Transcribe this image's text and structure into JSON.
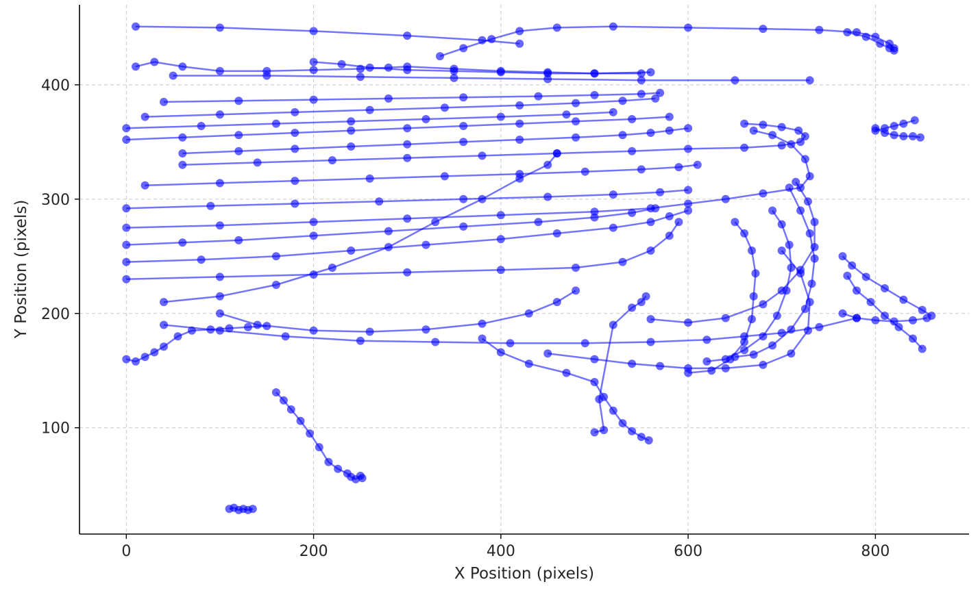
{
  "chart_data": {
    "type": "line",
    "xlabel": "X Position (pixels)",
    "ylabel": "Y Position (pixels)",
    "xlim": [
      -50,
      900
    ],
    "ylim": [
      470,
      7
    ],
    "y_inverted": true,
    "grid": true,
    "x_ticks": [
      0,
      200,
      400,
      600,
      800
    ],
    "y_ticks": [
      100,
      200,
      300,
      400
    ],
    "color": "#0000ff",
    "marker": "circle",
    "series": [
      {
        "x": [
          110,
          115,
          120,
          125,
          130,
          135
        ],
        "y": [
          29,
          30,
          28,
          29,
          28,
          29
        ]
      },
      {
        "x": [
          160,
          168,
          176,
          186,
          196,
          206,
          216,
          226,
          236,
          240,
          245,
          250,
          252
        ],
        "y": [
          131,
          124,
          116,
          106,
          95,
          83,
          70,
          64,
          60,
          57,
          55,
          58,
          56
        ]
      },
      {
        "x": [
          0,
          10,
          20,
          30,
          40,
          55,
          70,
          90,
          110,
          130,
          150
        ],
        "y": [
          160,
          158,
          162,
          166,
          171,
          180,
          185,
          186,
          187,
          188,
          189
        ]
      },
      {
        "x": [
          40,
          100,
          170,
          250,
          330,
          410,
          490,
          560,
          620,
          660,
          700,
          740,
          780
        ],
        "y": [
          190,
          185,
          180,
          176,
          175,
          174,
          174,
          175,
          177,
          180,
          183,
          188,
          196
        ]
      },
      {
        "x": [
          100,
          140,
          200,
          260,
          320,
          380,
          430,
          460,
          480
        ],
        "y": [
          200,
          190,
          185,
          184,
          186,
          191,
          200,
          210,
          220
        ]
      },
      {
        "x": [
          380,
          400,
          430,
          470,
          500,
          510,
          520,
          530,
          540,
          550,
          558
        ],
        "y": [
          178,
          166,
          156,
          148,
          140,
          127,
          115,
          104,
          97,
          92,
          89
        ]
      },
      {
        "x": [
          600,
          625,
          645,
          660,
          668,
          670,
          672,
          668,
          660,
          650
        ],
        "y": [
          148,
          150,
          160,
          175,
          195,
          215,
          235,
          255,
          270,
          280
        ]
      },
      {
        "x": [
          620,
          640,
          660,
          680,
          695,
          705,
          710,
          708,
          700,
          690
        ],
        "y": [
          158,
          160,
          168,
          180,
          198,
          220,
          240,
          260,
          278,
          290
        ]
      },
      {
        "x": [
          650,
          670,
          690,
          710,
          725,
          732,
          735,
          730,
          720,
          708
        ],
        "y": [
          162,
          164,
          172,
          186,
          204,
          226,
          248,
          270,
          290,
          310
        ]
      },
      {
        "x": [
          450,
          500,
          540,
          570,
          600,
          640,
          680,
          710,
          728,
          730,
          720,
          700
        ],
        "y": [
          165,
          160,
          156,
          154,
          152,
          152,
          155,
          165,
          185,
          210,
          235,
          255
        ]
      },
      {
        "x": [
          560,
          600,
          640,
          680,
          700,
          720,
          735,
          735,
          728,
          715
        ],
        "y": [
          195,
          192,
          196,
          208,
          220,
          238,
          258,
          280,
          298,
          315
        ]
      },
      {
        "x": [
          0,
          100,
          200,
          300,
          400,
          480,
          530,
          560,
          580,
          590
        ],
        "y": [
          230,
          232,
          234,
          236,
          238,
          240,
          245,
          255,
          268,
          280
        ]
      },
      {
        "x": [
          0,
          80,
          160,
          240,
          320,
          400,
          460,
          520,
          560,
          580,
          600
        ],
        "y": [
          245,
          247,
          250,
          255,
          260,
          265,
          270,
          275,
          280,
          285,
          290
        ]
      },
      {
        "x": [
          40,
          100,
          160,
          220,
          280,
          330,
          380,
          420,
          450,
          460
        ],
        "y": [
          210,
          215,
          225,
          240,
          258,
          280,
          300,
          318,
          330,
          340
        ]
      },
      {
        "x": [
          0,
          60,
          120,
          200,
          280,
          360,
          440,
          500,
          540,
          565
        ],
        "y": [
          260,
          262,
          264,
          268,
          272,
          276,
          280,
          284,
          288,
          292
        ]
      },
      {
        "x": [
          0,
          100,
          200,
          300,
          400,
          500,
          560,
          600,
          640,
          680,
          720,
          730,
          725,
          710,
          690,
          670
        ],
        "y": [
          275,
          277,
          280,
          283,
          286,
          289,
          292,
          296,
          300,
          305,
          310,
          320,
          335,
          348,
          356,
          360
        ]
      },
      {
        "x": [
          0,
          90,
          180,
          270,
          360,
          450,
          520,
          570,
          600
        ],
        "y": [
          292,
          294,
          296,
          298,
          300,
          302,
          304,
          306,
          308
        ]
      },
      {
        "x": [
          20,
          100,
          180,
          260,
          340,
          420,
          490,
          550,
          590,
          610
        ],
        "y": [
          312,
          314,
          316,
          318,
          320,
          322,
          324,
          326,
          328,
          330
        ]
      },
      {
        "x": [
          60,
          140,
          220,
          300,
          380,
          460,
          540,
          600,
          660,
          700,
          720,
          725,
          718,
          700,
          680,
          660
        ],
        "y": [
          330,
          332,
          334,
          336,
          338,
          340,
          342,
          344,
          345,
          347,
          350,
          355,
          360,
          363,
          365,
          366
        ]
      },
      {
        "x": [
          60,
          120,
          180,
          240,
          300,
          360,
          420,
          480,
          530,
          560,
          580,
          600
        ],
        "y": [
          340,
          342,
          344,
          346,
          348,
          350,
          352,
          354,
          356,
          358,
          360,
          362
        ]
      },
      {
        "x": [
          0,
          60,
          120,
          180,
          240,
          300,
          360,
          420,
          480,
          540,
          580
        ],
        "y": [
          352,
          354,
          356,
          358,
          360,
          362,
          364,
          366,
          368,
          370,
          372
        ]
      },
      {
        "x": [
          0,
          80,
          160,
          240,
          320,
          400,
          470,
          520
        ],
        "y": [
          362,
          364,
          366,
          368,
          370,
          372,
          374,
          376
        ]
      },
      {
        "x": [
          20,
          100,
          180,
          260,
          340,
          420,
          480,
          530,
          565
        ],
        "y": [
          372,
          374,
          376,
          378,
          380,
          382,
          384,
          386,
          388
        ]
      },
      {
        "x": [
          40,
          120,
          200,
          280,
          360,
          440,
          500,
          550,
          570
        ],
        "y": [
          385,
          386,
          387,
          388,
          389,
          390,
          391,
          392,
          393
        ]
      },
      {
        "x": [
          50,
          150,
          250,
          350,
          450,
          550,
          650,
          730
        ],
        "y": [
          408,
          408,
          407,
          406,
          405,
          404,
          404,
          404
        ]
      },
      {
        "x": [
          10,
          30,
          60,
          100,
          150,
          200,
          250,
          280,
          300,
          350,
          400,
          450,
          500,
          550
        ],
        "y": [
          416,
          420,
          416,
          412,
          412,
          413,
          414,
          415,
          416,
          414,
          412,
          411,
          410,
          410
        ]
      },
      {
        "x": [
          200,
          230,
          260,
          300,
          350,
          400,
          450,
          500,
          560
        ],
        "y": [
          420,
          418,
          415,
          413,
          412,
          411,
          410,
          410,
          411
        ]
      },
      {
        "x": [
          10,
          100,
          200,
          300,
          380,
          420
        ],
        "y": [
          451,
          450,
          447,
          443,
          439,
          436
        ]
      },
      {
        "x": [
          335,
          360,
          390,
          420,
          460,
          520,
          600,
          680,
          740,
          780,
          800,
          815,
          820
        ],
        "y": [
          425,
          432,
          440,
          447,
          450,
          451,
          450,
          449,
          448,
          446,
          442,
          436,
          432
        ]
      },
      {
        "x": [
          765,
          775,
          790,
          810,
          830,
          850,
          860
        ],
        "y": [
          250,
          242,
          232,
          222,
          212,
          203,
          198
        ]
      },
      {
        "x": [
          770,
          780,
          795,
          810,
          825,
          840,
          850
        ],
        "y": [
          233,
          220,
          210,
          198,
          188,
          178,
          169
        ]
      },
      {
        "x": [
          765,
          780,
          800,
          820,
          840,
          855
        ],
        "y": [
          200,
          196,
          194,
          193,
          194,
          196
        ]
      },
      {
        "x": [
          800,
          810,
          820,
          830,
          840,
          848
        ],
        "y": [
          362,
          358,
          356,
          355,
          355,
          354
        ]
      },
      {
        "x": [
          800,
          810,
          820,
          830,
          842
        ],
        "y": [
          360,
          362,
          364,
          366,
          369
        ]
      },
      {
        "x": [
          770,
          790,
          805,
          815,
          820
        ],
        "y": [
          446,
          442,
          436,
          432,
          430
        ]
      },
      {
        "x": [
          500,
          510,
          505,
          520,
          540,
          550,
          555
        ],
        "y": [
          96,
          98,
          125,
          190,
          205,
          210,
          215
        ]
      }
    ]
  }
}
